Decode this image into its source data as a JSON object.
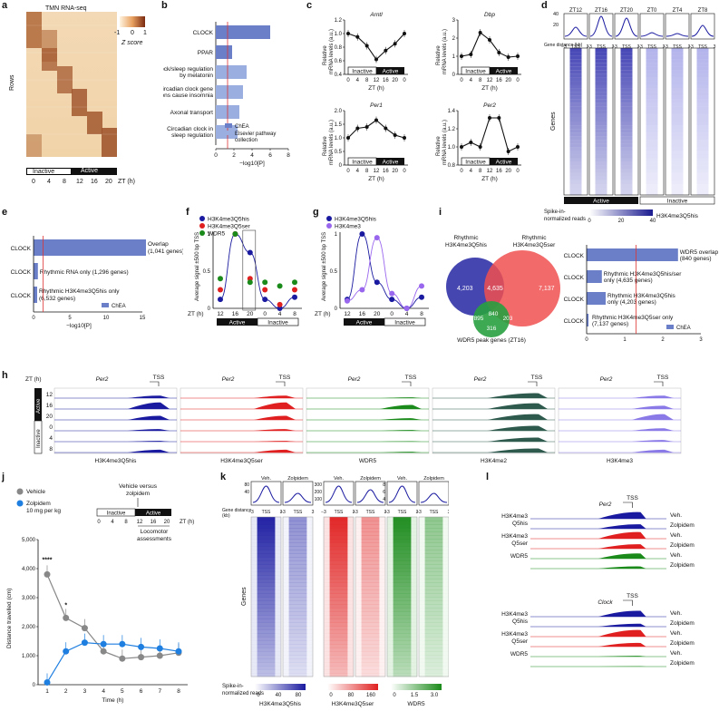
{
  "panels": {
    "a": {
      "letter": "a",
      "title": "TMN RNA-seq",
      "rows_label": "Rows",
      "colorbar_ticks": [
        "-1",
        "0",
        "1"
      ],
      "colorbar_label": "Z score",
      "x_ticks": [
        "0",
        "4",
        "8",
        "12",
        "16",
        "20"
      ],
      "x_unit": "ZT (h)",
      "phase_inactive": "Inactive",
      "phase_active": "Active"
    },
    "b": {
      "letter": "b",
      "xlabel": "−log10[P]",
      "x_ticks": [
        "0",
        "2",
        "4",
        "6",
        "8"
      ],
      "legend": [
        "ChEA",
        "Elsevier pathway collection"
      ],
      "chart_data": {
        "type": "bar",
        "categories": [
          "CLOCK",
          "PPAR",
          "Circadian clock/sleep regulation by melatonin",
          "Circadian clock gene mutations cause insomnia",
          "Axonal transport",
          "Circadian clock in sleep regulation"
        ],
        "values": [
          6.0,
          1.8,
          3.4,
          3.0,
          2.6,
          2.4
        ],
        "source": [
          "ChEA",
          "ChEA",
          "Elsevier pathway collection",
          "Elsevier pathway collection",
          "Elsevier pathway collection",
          "Elsevier pathway collection"
        ],
        "xlim": [
          0,
          8
        ]
      }
    },
    "c": {
      "letter": "c",
      "xlabel": "ZT (h)",
      "x_ticks": [
        "0",
        "4",
        "8",
        "12",
        "16",
        "20",
        "0"
      ],
      "ylabel": "Relative mRNA levels (a.u.)",
      "phase_inactive": "Inactive",
      "phase_active": "Active",
      "chart_data": [
        {
          "type": "line",
          "title": "Arntl",
          "x": [
            0,
            4,
            8,
            12,
            16,
            20,
            24
          ],
          "values": [
            1.0,
            0.95,
            0.82,
            0.62,
            0.75,
            0.85,
            1.0
          ],
          "ylim": [
            0.4,
            1.2
          ],
          "y_ticks": [
            "0.4",
            "0.6",
            "0.8",
            "1.0",
            "1.2"
          ]
        },
        {
          "type": "line",
          "title": "Dbp",
          "x": [
            0,
            4,
            8,
            12,
            16,
            20,
            24
          ],
          "values": [
            1.0,
            1.1,
            2.3,
            1.9,
            1.2,
            0.95,
            1.0
          ],
          "ylim": [
            0,
            3
          ],
          "y_ticks": [
            "0",
            "1",
            "2",
            "3"
          ]
        },
        {
          "type": "line",
          "title": "Per1",
          "x": [
            0,
            4,
            8,
            12,
            16,
            20,
            24
          ],
          "values": [
            1.0,
            1.35,
            1.4,
            1.65,
            1.35,
            1.1,
            1.0
          ],
          "ylim": [
            0,
            2
          ],
          "y_ticks": [
            "0",
            "0.5",
            "1.0",
            "1.5",
            "2.0"
          ]
        },
        {
          "type": "line",
          "title": "Per2",
          "x": [
            0,
            4,
            8,
            12,
            16,
            20,
            24
          ],
          "values": [
            1.0,
            1.05,
            1.0,
            1.32,
            1.32,
            0.95,
            1.0
          ],
          "ylim": [
            0.8,
            1.4
          ],
          "y_ticks": [
            "0.8",
            "1.0",
            "1.2",
            "1.4"
          ]
        }
      ]
    },
    "d": {
      "letter": "d",
      "timepoints": [
        "ZT12",
        "ZT16",
        "ZT20",
        "ZT0",
        "ZT4",
        "ZT8"
      ],
      "gene_distance_label": "Gene distance (kb)",
      "gene_distance_ticks": [
        "−3",
        "TSS",
        "3"
      ],
      "genes_label": "Genes",
      "phase_active": "Active",
      "phase_inactive": "Inactive",
      "colorbar_title": "Spike-in-normalized reads",
      "colorbar_ticks": [
        "0",
        "20",
        "40"
      ],
      "colorbar_mark": "H3K4me3Q5his",
      "profile_y_ticks": [
        "40",
        "20"
      ]
    },
    "e": {
      "letter": "e",
      "xlabel": "−log10[P]",
      "x_ticks": [
        "0",
        "5",
        "10",
        "15"
      ],
      "legend": "ChEA",
      "chart_data": {
        "type": "bar",
        "categories": [
          "CLOCK",
          "CLOCK",
          "CLOCK"
        ],
        "annotations": [
          "Overlap (1,041 genes)",
          "Rhythmic RNA only (1,296 genes)",
          "Rhythmic H3K4me3Q5his only (6,532 genes)"
        ],
        "values": [
          15.5,
          0.6,
          0.5
        ],
        "xlim": [
          0,
          15
        ]
      }
    },
    "f": {
      "letter": "f",
      "ylabel": "Average signal ±500 bp TSS",
      "x_ticks": [
        "12",
        "16",
        "20",
        "0",
        "4",
        "8"
      ],
      "x_unit": "ZT (h)",
      "phase_active": "Active",
      "phase_inactive": "Inactive",
      "y_ticks": [
        "0",
        "0.5",
        "1"
      ],
      "chart_data": {
        "type": "scatter",
        "x": [
          12,
          16,
          20,
          0,
          4,
          8
        ],
        "series": [
          {
            "name": "H3K4me3Q5his",
            "values": [
              0.12,
              1.0,
              0.75,
              0.12,
              0.0,
              0.15
            ],
            "color": "#1a1aa0"
          },
          {
            "name": "H3K4me3Q5ser",
            "values": [
              0.25,
              1.0,
              0.4,
              0.25,
              0.05,
              0.25
            ],
            "color": "#e02020"
          },
          {
            "name": "WDR5",
            "values": [
              0.4,
              1.0,
              0.35,
              0.35,
              0.3,
              0.35
            ],
            "color": "#1a8a1a"
          }
        ],
        "ylim": [
          0,
          1
        ]
      }
    },
    "g": {
      "letter": "g",
      "ylabel": "Average signal ±500 bp TSS",
      "x_ticks": [
        "12",
        "16",
        "20",
        "0",
        "4",
        "8"
      ],
      "x_unit": "ZT (h)",
      "phase_active": "Active",
      "phase_inactive": "Inactive",
      "y_ticks": [
        "0",
        "0.5",
        "1"
      ],
      "chart_data": {
        "type": "scatter",
        "x": [
          12,
          16,
          20,
          0,
          4,
          8
        ],
        "series": [
          {
            "name": "H3K4me3Q5his",
            "values": [
              0.12,
              1.0,
              0.35,
              0.12,
              0.0,
              0.15
            ],
            "color": "#1a1aa0"
          },
          {
            "name": "H3K4me3",
            "values": [
              0.1,
              0.25,
              0.95,
              0.2,
              0.0,
              0.3
            ],
            "color": "#9966ee"
          }
        ],
        "ylim": [
          0,
          1
        ]
      }
    },
    "i": {
      "letter": "i",
      "venn_labels": [
        "Rhythmic H3K4me3Q5his",
        "Rhythmic H3K4me3Q5ser",
        "WDR5 peak genes (ZT16)"
      ],
      "venn_counts": [
        "4,203",
        "4,635",
        "7,137",
        "895",
        "840",
        "203",
        "316"
      ],
      "xlabel": "−log10[P]",
      "x_ticks": [
        "0",
        "1",
        "2",
        "3"
      ],
      "legend": "ChEA",
      "chart_data": {
        "type": "bar",
        "categories": [
          "CLOCK",
          "CLOCK",
          "CLOCK",
          "CLOCK"
        ],
        "annotations": [
          "WDR5 overlap (840 genes)",
          "Rhythmic H3K4me3Q5his/ser only (4,635 genes)",
          "Rhythmic H3K4me3Q5his only (4,203 genes)",
          "Rhythmic H3K4me3Q5ser only (7,137 genes)"
        ],
        "values": [
          2.4,
          0.4,
          0.5,
          0.05
        ],
        "xlim": [
          0,
          3
        ]
      }
    },
    "h": {
      "letter": "h",
      "zt_label": "ZT (h)",
      "gene": "Per2",
      "tss": "TSS",
      "zt_rows": [
        "12",
        "16",
        "20",
        "0",
        "4",
        "8"
      ],
      "phase_active": "Active",
      "phase_inactive": "Inactive",
      "tracks": [
        "H3K4me3Q5his",
        "H3K4me3Q5ser",
        "WDR5",
        "H3K4me2",
        "H3K4me3"
      ]
    },
    "j": {
      "letter": "j",
      "ylabel": "Distance travelled (cm)",
      "xlabel": "Time (h)",
      "legend": [
        "Vehicle",
        "Zolpidem 10 mg per kg"
      ],
      "inset_title": "Vehicle versus zolpidem",
      "inset_phase_inactive": "Inactive",
      "inset_phase_active": "Active",
      "inset_ticks": [
        "0",
        "4",
        "8",
        "12",
        "16",
        "20"
      ],
      "inset_unit": "ZT (h)",
      "inset_note": "Locomotor assessments",
      "y_ticks": [
        "0",
        "1,000",
        "2,000",
        "3,000",
        "4,000",
        "5,000"
      ],
      "sig_marks": [
        "****",
        "*"
      ],
      "chart_data": {
        "type": "line",
        "x": [
          1,
          2,
          3,
          4,
          5,
          6,
          7,
          8
        ],
        "series": [
          {
            "name": "Vehicle",
            "values": [
              3800,
              2300,
              1950,
              1150,
              900,
              950,
              1000,
              1100
            ],
            "color": "#888888"
          },
          {
            "name": "Zolpidem 10 mg per kg",
            "values": [
              80,
              1150,
              1450,
              1400,
              1400,
              1300,
              1250,
              1150
            ],
            "color": "#1f7fe0"
          }
        ],
        "ylim": [
          0,
          5000
        ],
        "y_ticks": [
          0,
          1000,
          2000,
          3000,
          4000,
          5000
        ]
      }
    },
    "k": {
      "letter": "k",
      "conditions": [
        "Veh.",
        "Zolpidem"
      ],
      "gene_distance_label": "Gene distance (kb)",
      "gene_distance_ticks": [
        "−3",
        "TSS",
        "3"
      ],
      "genes_label": "Genes",
      "colorbar_title": "Spike-in-normalized reads",
      "colorbars": [
        {
          "mark": "H3K4me3Q5his",
          "ticks": [
            "0",
            "40",
            "80"
          ]
        },
        {
          "mark": "H3K4me3Q5ser",
          "ticks": [
            "0",
            "80",
            "160"
          ]
        },
        {
          "mark": "WDR5",
          "ticks": [
            "0",
            "1.5",
            "3.0"
          ]
        }
      ],
      "profile_y_ticks": [
        [
          "80",
          "40"
        ],
        [
          "300",
          "200",
          "100"
        ],
        [
          "8",
          "6",
          "4"
        ]
      ]
    },
    "l": {
      "letter": "l",
      "tss": "TSS",
      "gene1": "Per2",
      "gene2": "Clock",
      "marks": [
        "H3K4me3 Q5his",
        "H3K4me3 Q5ser",
        "WDR5"
      ],
      "conditions": [
        "Veh.",
        "Zolpidem"
      ]
    }
  }
}
